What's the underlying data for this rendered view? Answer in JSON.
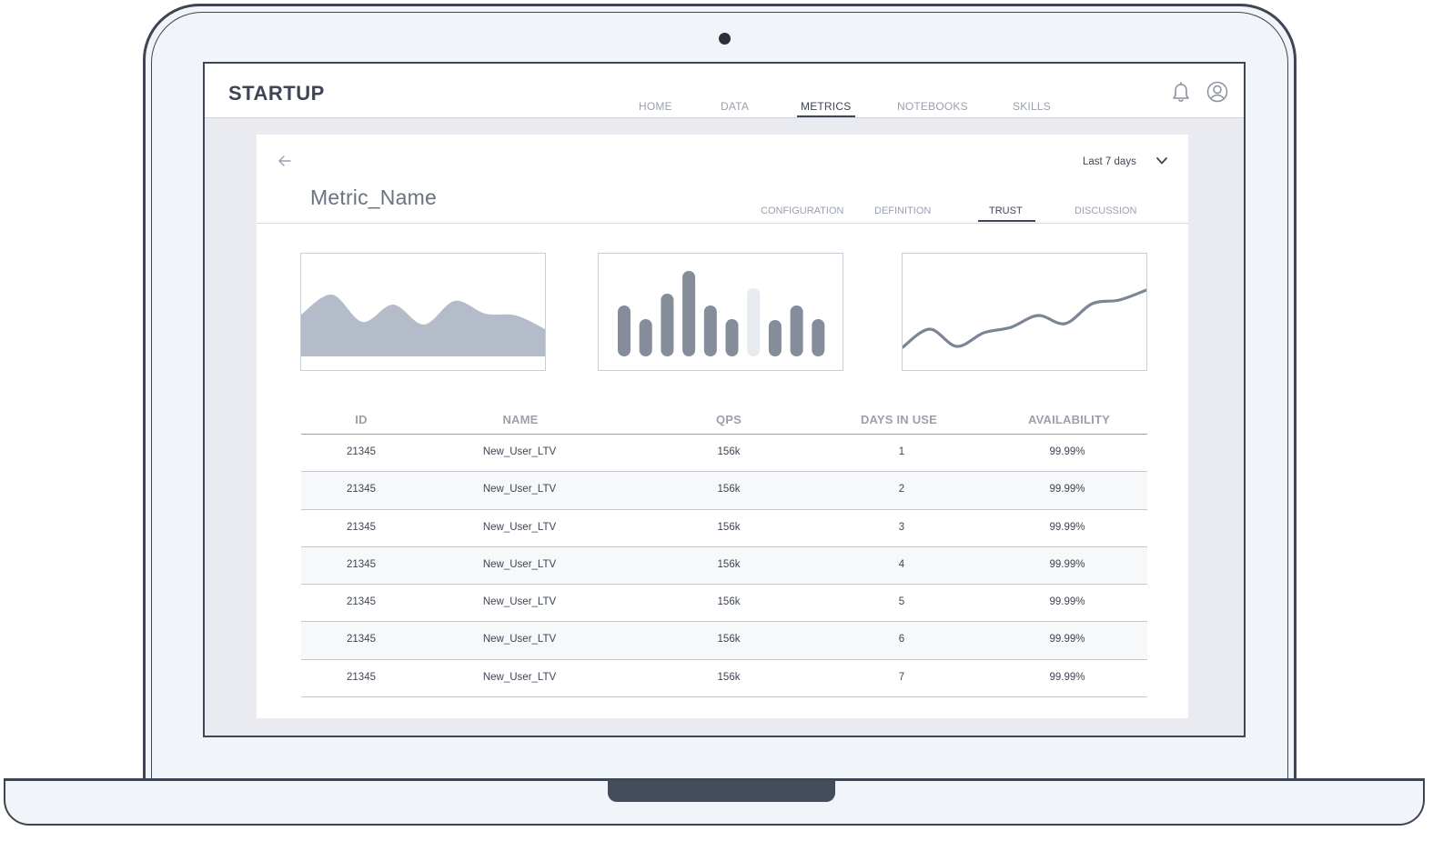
{
  "app": {
    "logo": "STARTUP",
    "nav": [
      "HOME",
      "DATA",
      "METRICS",
      "NOTEBOOKS",
      "SKILLS"
    ],
    "active_nav": "METRICS",
    "icons": [
      "bell-icon",
      "user-circle-icon",
      "arrow-left-icon",
      "chevron-down-icon"
    ]
  },
  "metric": {
    "title": "Metric_Name",
    "range_label": "Last 7 days",
    "tabs": [
      "CONFIGURATION",
      "DEFINITION",
      "TRUST",
      "DISCUSSION"
    ],
    "active_tab": "TRUST"
  },
  "colors": {
    "frame": "#3e4554",
    "area_fill": "#b3bcc8",
    "bar": "#858d9b",
    "bar_highlight": "#e7eaef",
    "line": "#7c8595"
  },
  "chart_data": [
    {
      "type": "area",
      "title": "",
      "x": [
        0,
        1,
        2,
        3,
        4,
        5,
        6,
        7,
        8
      ],
      "values": [
        63,
        85,
        55,
        74,
        52,
        78,
        64,
        62,
        46
      ]
    },
    {
      "type": "bar",
      "title": "",
      "categories": [
        "1",
        "2",
        "3",
        "4",
        "5",
        "6",
        "7",
        "8",
        "9",
        "10"
      ],
      "values": [
        56,
        41,
        69,
        94,
        56,
        41,
        75,
        40,
        56,
        41
      ],
      "highlight_index": 6
    },
    {
      "type": "line",
      "title": "",
      "x": [
        0,
        1,
        2,
        3,
        4,
        5,
        6,
        7,
        8,
        9
      ],
      "values": [
        22,
        42,
        23,
        38,
        44,
        57,
        48,
        70,
        74,
        85
      ]
    }
  ],
  "table": {
    "columns": [
      "ID",
      "NAME",
      "QPS",
      "DAYS IN USE",
      "AVAILABILITY"
    ],
    "rows": [
      [
        "21345",
        "New_User_LTV",
        "156k",
        "1",
        "99.99%"
      ],
      [
        "21345",
        "New_User_LTV",
        "156k",
        "2",
        "99.99%"
      ],
      [
        "21345",
        "New_User_LTV",
        "156k",
        "3",
        "99.99%"
      ],
      [
        "21345",
        "New_User_LTV",
        "156k",
        "4",
        "99.99%"
      ],
      [
        "21345",
        "New_User_LTV",
        "156k",
        "5",
        "99.99%"
      ],
      [
        "21345",
        "New_User_LTV",
        "156k",
        "6",
        "99.99%"
      ],
      [
        "21345",
        "New_User_LTV",
        "156k",
        "7",
        "99.99%"
      ]
    ]
  }
}
